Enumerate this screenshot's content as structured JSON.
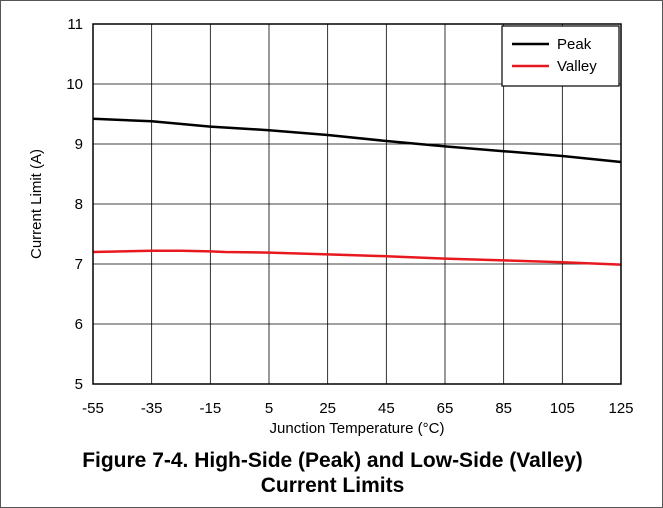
{
  "chart_data": {
    "type": "line",
    "title": "",
    "xlabel": "Junction Temperature (°C)",
    "ylabel": "Current Limit (A)",
    "xlim": [
      -55,
      125
    ],
    "ylim": [
      5,
      11
    ],
    "xticks": [
      -55,
      -35,
      -15,
      5,
      25,
      45,
      65,
      85,
      105,
      125
    ],
    "yticks": [
      5,
      6,
      7,
      8,
      9,
      10,
      11
    ],
    "grid": true,
    "legend_position": "top-right",
    "series": [
      {
        "name": "Peak",
        "color": "#000000",
        "x": [
          -55,
          -35,
          -15,
          5,
          25,
          45,
          65,
          85,
          105,
          125
        ],
        "y": [
          9.42,
          9.38,
          9.29,
          9.23,
          9.15,
          9.05,
          8.96,
          8.88,
          8.8,
          8.7
        ]
      },
      {
        "name": "Valley",
        "color": "#e8191e",
        "x": [
          -55,
          -35,
          -25,
          -15,
          -10,
          5,
          25,
          45,
          65,
          85,
          105,
          125
        ],
        "y": [
          7.2,
          7.22,
          7.22,
          7.21,
          7.2,
          7.19,
          7.16,
          7.13,
          7.09,
          7.06,
          7.03,
          6.99
        ]
      }
    ]
  },
  "caption": {
    "line1": "Figure 7-4. High-Side (Peak) and Low-Side (Valley)",
    "line2": "Current Limits"
  }
}
